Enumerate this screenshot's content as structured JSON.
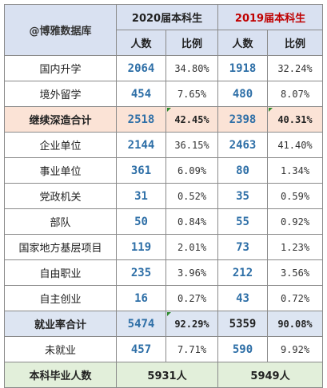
{
  "header": {
    "brand": "@博雅数据库",
    "year_2020": "2020届本科生",
    "year_2019": "2019届本科生",
    "col_count": "人数",
    "col_ratio": "比例"
  },
  "rows": [
    {
      "label": "国内升学",
      "c2020": "2064",
      "p2020": "34.80%",
      "c2019": "1918",
      "p2019": "32.24%"
    },
    {
      "label": "境外留学",
      "c2020": "454",
      "p2020": "7.65%",
      "c2019": "480",
      "p2019": "8.07%"
    },
    {
      "label": "继续深造合计",
      "c2020": "2518",
      "p2020": "42.45%",
      "c2019": "2398",
      "p2019": "40.31%"
    },
    {
      "label": "企业单位",
      "c2020": "2144",
      "p2020": "36.15%",
      "c2019": "2463",
      "p2019": "41.40%"
    },
    {
      "label": "事业单位",
      "c2020": "361",
      "p2020": "6.09%",
      "c2019": "80",
      "p2019": "1.34%"
    },
    {
      "label": "党政机关",
      "c2020": "31",
      "p2020": "0.52%",
      "c2019": "35",
      "p2019": "0.59%"
    },
    {
      "label": "部队",
      "c2020": "50",
      "p2020": "0.84%",
      "c2019": "55",
      "p2019": "0.92%"
    },
    {
      "label": "国家地方基层项目",
      "c2020": "119",
      "p2020": "2.01%",
      "c2019": "73",
      "p2019": "1.23%"
    },
    {
      "label": "自由职业",
      "c2020": "235",
      "p2020": "3.96%",
      "c2019": "212",
      "p2019": "3.56%"
    },
    {
      "label": "自主创业",
      "c2020": "16",
      "p2020": "0.27%",
      "c2019": "43",
      "p2019": "0.72%"
    },
    {
      "label": "就业率合计",
      "c2020": "5474",
      "p2020": "92.29%",
      "c2019": "5359",
      "p2019": "90.08%"
    },
    {
      "label": "未就业",
      "c2020": "457",
      "p2020": "7.71%",
      "c2019": "590",
      "p2019": "9.92%"
    }
  ],
  "footer": {
    "label": "本科毕业人数",
    "total_2020": "5931人",
    "total_2019": "5949人"
  },
  "colors": {
    "header_bg": "#d9e1f1",
    "deep_study_bg": "#fbe3d6",
    "employment_bg": "#dde5f2",
    "footer_bg": "#e2efda",
    "number_blue": "#2e6fa7",
    "year_2019_red": "#c00000"
  }
}
